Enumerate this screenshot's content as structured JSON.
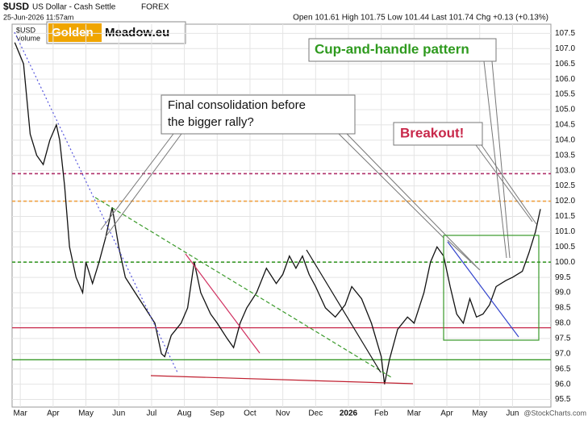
{
  "chart_data": {
    "type": "line",
    "symbol": "$USD",
    "title": "US Dollar - Cash Settle",
    "exchange": "FOREX",
    "date": "25-Jun-2026 11:57am",
    "quote": "Open 101.61 High 101.75 Low 101.44 Last 101.74 Chg +0.13 (+0.13%)",
    "credit": "@StockCharts.com",
    "legend_symbol": "$USD",
    "legend_volume": "Volume",
    "logo": [
      "Golden",
      "Meadow.eu"
    ],
    "consolidation_note": [
      "Final consolidation before",
      "the bigger rally?"
    ],
    "pattern_note": "Cup-and-handle pattern",
    "breakout_note": "Breakout!",
    "grid": true,
    "xlim": [
      -0.25,
      16.17
    ],
    "xticks": [
      {
        "value": 0,
        "label": "Mar"
      },
      {
        "value": 1,
        "label": "Apr"
      },
      {
        "value": 2,
        "label": "May"
      },
      {
        "value": 3,
        "label": "Jun"
      },
      {
        "value": 4,
        "label": "Jul"
      },
      {
        "value": 5,
        "label": "Aug"
      },
      {
        "value": 6,
        "label": "Sep"
      },
      {
        "value": 7,
        "label": "Oct"
      },
      {
        "value": 8,
        "label": "Nov"
      },
      {
        "value": 9,
        "label": "Dec"
      },
      {
        "value": 10,
        "label": "2026"
      },
      {
        "value": 11,
        "label": "Feb"
      },
      {
        "value": 12,
        "label": "Mar"
      },
      {
        "value": 13,
        "label": "Apr"
      },
      {
        "value": 14,
        "label": "May"
      },
      {
        "value": 15,
        "label": "Jun"
      }
    ],
    "ylim": [
      95.25,
      107.8
    ],
    "yticks": [
      95.5,
      {
        "value": 96,
        "label": "96.0"
      },
      96.5,
      {
        "value": 97,
        "label": "97.0"
      },
      97.5,
      {
        "value": 98,
        "label": "98.0"
      },
      98.5,
      {
        "value": 99,
        "label": "99.0"
      },
      99.5,
      {
        "value": 100,
        "label": "100.0"
      },
      100.5,
      {
        "value": 101,
        "label": "101.0"
      },
      101.5,
      {
        "value": 102,
        "label": "102.0"
      },
      102.5,
      {
        "value": 103,
        "label": "103.0"
      },
      103.5,
      {
        "value": 104,
        "label": "104.0"
      },
      104.5,
      {
        "value": 105,
        "label": "105.0"
      },
      105.5,
      {
        "value": 106,
        "label": "106.0"
      },
      106.5,
      {
        "value": 107,
        "label": "107.0"
      },
      107.5
    ],
    "reference_lines": [
      {
        "value": 102.9,
        "color": "#b0306a",
        "style": "dashed"
      },
      {
        "value": 102.0,
        "color": "#f0a040",
        "style": "dashed"
      },
      {
        "value": 100.0,
        "color": "#3a9a2a",
        "style": "dashed"
      },
      {
        "value": 97.85,
        "color": "#c8284a",
        "style": "solid"
      },
      {
        "value": 96.8,
        "color": "#3a9a2a",
        "style": "solid"
      }
    ],
    "series": [
      {
        "name": "$USD",
        "color": "#111111",
        "x": [
          -0.17,
          0.1,
          0.3,
          0.5,
          0.7,
          0.9,
          1.1,
          1.2,
          1.35,
          1.5,
          1.7,
          1.9,
          2.0,
          2.2,
          2.4,
          2.6,
          2.8,
          3.0,
          3.2,
          3.5,
          3.8,
          4.1,
          4.3,
          4.4,
          4.6,
          4.9,
          5.1,
          5.3,
          5.5,
          5.8,
          6.0,
          6.3,
          6.5,
          6.7,
          6.9,
          7.2,
          7.5,
          7.8,
          8.0,
          8.2,
          8.4,
          8.6,
          8.8,
          9.0,
          9.3,
          9.6,
          9.9,
          10.1,
          10.4,
          10.7,
          11.0,
          11.1,
          11.25,
          11.5,
          11.8,
          12.0,
          12.3,
          12.5,
          12.7,
          12.9,
          13.1,
          13.3,
          13.5,
          13.7,
          13.9,
          14.1,
          14.3,
          14.5,
          14.8,
          15.0,
          15.3,
          15.5,
          15.7,
          15.85
        ],
        "values": [
          107.2,
          106.5,
          104.2,
          103.5,
          103.2,
          104.0,
          104.5,
          104.0,
          102.5,
          100.5,
          99.5,
          99.0,
          100.0,
          99.3,
          100.0,
          100.8,
          101.8,
          100.5,
          99.5,
          99.0,
          98.5,
          98.0,
          97.0,
          96.9,
          97.6,
          98.0,
          98.5,
          100.0,
          99.0,
          98.3,
          98.0,
          97.5,
          97.2,
          98.0,
          98.5,
          99.0,
          99.8,
          99.3,
          99.6,
          100.2,
          99.8,
          100.2,
          99.6,
          99.2,
          98.5,
          98.2,
          98.6,
          99.2,
          98.8,
          98.0,
          96.9,
          96.0,
          96.8,
          97.8,
          98.2,
          98.0,
          99.0,
          100.0,
          100.5,
          100.2,
          99.2,
          98.3,
          98.0,
          98.8,
          98.2,
          98.3,
          98.6,
          99.2,
          99.4,
          99.5,
          99.7,
          100.3,
          101.0,
          101.74
        ]
      }
    ]
  }
}
